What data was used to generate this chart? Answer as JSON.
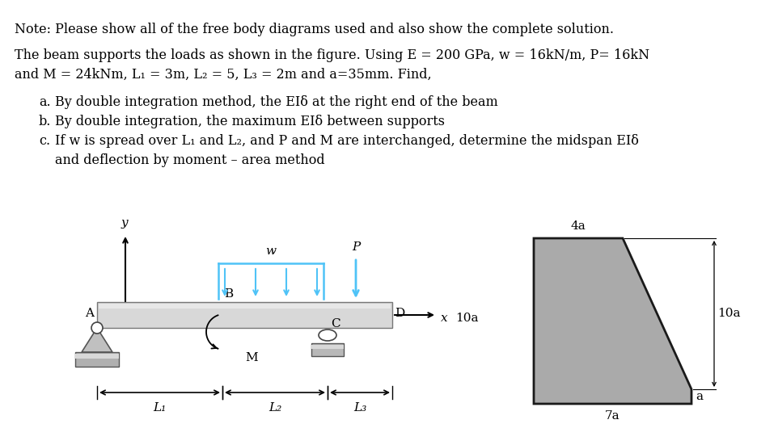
{
  "note_text": "Note: Please show all of the free body diagrams used and also show the complete solution.",
  "problem_text_line1": "The beam supports the loads as shown in the figure. Using E = 200 GPa, w = 16kN/m, P= 16kN",
  "problem_text_line2": "and M = 24kNm, L₁ = 3m, L₂ = 5, L₃ = 2m and a=35mm. Find,",
  "item_a": "By double integration method, the EIδ at the right end of the beam",
  "item_b": "By double integration, the maximum EIδ between supports",
  "item_c": "If w is spread over L₁ and L₂, and P and M are interchanged, determine the midspan EIδ",
  "item_c2": "and deflection by moment – area method",
  "bg_color": "#ffffff",
  "text_color": "#000000",
  "beam_color": "#d8d8d8",
  "beam_border": "#777777",
  "load_color": "#4fc3f7",
  "cross_section_color": "#aaaaaa",
  "cross_section_border": "#1a1a1a",
  "dim_color": "#555555",
  "support_color": "#aaaaaa"
}
